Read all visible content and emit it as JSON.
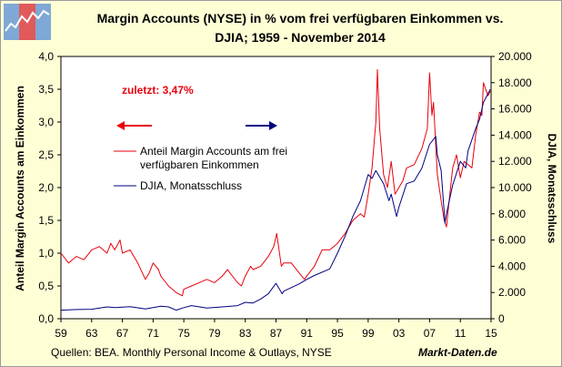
{
  "header": {
    "title_line1": "Margin Accounts (NYSE) in % vom frei verfügbaren Einkommen vs.",
    "title_line2": "DJIA; 1959 - November 2014"
  },
  "footer": {
    "source": "Quellen: BEA. Monthly Personal Income & Outlays, NYSE",
    "brand": "Markt-Daten.de"
  },
  "colors": {
    "margin": "#E8000B",
    "djia": "#000080",
    "plot_bg": "#FFFFFF",
    "frame_bg": "#FFFFD6"
  },
  "chart_data": {
    "type": "line",
    "xlabel": "",
    "x_ticks": [
      "59",
      "63",
      "67",
      "71",
      "75",
      "79",
      "83",
      "87",
      "91",
      "95",
      "99",
      "03",
      "07",
      "11",
      "15"
    ],
    "xlim": [
      1959,
      2015
    ],
    "left_axis": {
      "label": "Anteil Margin Accounts am Einkommen",
      "ylim": [
        0,
        4
      ],
      "ticks": [
        "0,0",
        "0,5",
        "1,0",
        "1,5",
        "2,0",
        "2,5",
        "3,0",
        "3,5",
        "4,0"
      ]
    },
    "right_axis": {
      "label": "DJIA, Monatsschluss",
      "ylim": [
        0,
        20000
      ],
      "ticks": [
        "0",
        "2.000",
        "4.000",
        "6.000",
        "8.000",
        "10.000",
        "12.000",
        "14.000",
        "16.000",
        "18.000",
        "20.000"
      ]
    },
    "annotation": "zuletzt: 3,47%",
    "legend": [
      "Anteil Margin Accounts am frei verfügbaren Einkommen",
      "DJIA, Monatsschluss"
    ],
    "series": [
      {
        "name": "Anteil Margin Accounts am frei verfügbaren Einkommen",
        "axis": "left",
        "x": [
          1959,
          1960,
          1961,
          1962,
          1963,
          1964,
          1965,
          1965.5,
          1966,
          1966.7,
          1967,
          1968,
          1968.5,
          1969,
          1970,
          1970.5,
          1971,
          1971.7,
          1972,
          1973,
          1974,
          1974.8,
          1975,
          1976,
          1977,
          1978,
          1979,
          1980,
          1980.7,
          1981,
          1982,
          1982.5,
          1983,
          1983.7,
          1984,
          1985,
          1986,
          1986.7,
          1987.1,
          1987.7,
          1988,
          1989,
          1990,
          1990.7,
          1991,
          1992,
          1993,
          1994,
          1995,
          1996,
          1997,
          1998,
          1998.5,
          1999,
          1999.5,
          2000,
          2000.2,
          2000.5,
          2001,
          2001.5,
          2002,
          2002.5,
          2003,
          2003.5,
          2004,
          2005,
          2006,
          2006.7,
          2007,
          2007.3,
          2007.5,
          2008,
          2008.5,
          2008.9,
          2009.2,
          2009.5,
          2010,
          2010.5,
          2011,
          2011.5,
          2012,
          2012.5,
          2013,
          2013.5,
          2013.8,
          2014,
          2014.3,
          2014.6,
          2014.9
        ],
        "values": [
          1.0,
          0.85,
          0.95,
          0.9,
          1.05,
          1.1,
          1.0,
          1.15,
          1.05,
          1.2,
          1.0,
          1.05,
          0.95,
          0.85,
          0.6,
          0.7,
          0.85,
          0.75,
          0.65,
          0.5,
          0.4,
          0.35,
          0.45,
          0.5,
          0.55,
          0.6,
          0.55,
          0.65,
          0.75,
          0.7,
          0.55,
          0.5,
          0.65,
          0.8,
          0.75,
          0.8,
          0.95,
          1.1,
          1.3,
          0.8,
          0.85,
          0.85,
          0.7,
          0.6,
          0.65,
          0.8,
          1.05,
          1.05,
          1.15,
          1.3,
          1.5,
          1.6,
          1.55,
          1.9,
          2.3,
          3.0,
          3.8,
          2.9,
          2.2,
          2.0,
          2.4,
          1.9,
          2.0,
          2.1,
          2.3,
          2.35,
          2.6,
          2.9,
          3.75,
          3.1,
          3.3,
          2.2,
          1.8,
          1.5,
          1.4,
          1.75,
          2.3,
          2.5,
          2.15,
          2.4,
          2.35,
          2.3,
          2.8,
          3.15,
          3.1,
          3.6,
          3.5,
          3.4,
          3.47
        ]
      },
      {
        "name": "DJIA, Monatsschluss",
        "axis": "right",
        "x": [
          1959,
          1961,
          1963,
          1965,
          1966,
          1967,
          1968,
          1970,
          1972,
          1973,
          1974,
          1975,
          1976,
          1978,
          1980,
          1982,
          1983,
          1984,
          1985,
          1986,
          1987,
          1987.8,
          1988,
          1990,
          1991,
          1992,
          1994,
          1995,
          1996,
          1997,
          1998,
          1999,
          1999.5,
          2000,
          2001,
          2001.7,
          2002,
          2002.7,
          2003,
          2004,
          2005,
          2006,
          2007,
          2007.8,
          2008,
          2008.5,
          2009,
          2009.2,
          2010,
          2011,
          2011.7,
          2012,
          2013,
          2013.5,
          2014,
          2014.9
        ],
        "values": [
          650,
          700,
          720,
          900,
          850,
          880,
          920,
          750,
          950,
          900,
          650,
          850,
          1000,
          820,
          900,
          1000,
          1250,
          1200,
          1500,
          1900,
          2700,
          1900,
          2100,
          2650,
          3000,
          3300,
          3800,
          5000,
          6300,
          7800,
          9000,
          11000,
          10700,
          11300,
          10300,
          9000,
          9500,
          7800,
          8500,
          10300,
          10500,
          11500,
          13300,
          13900,
          12500,
          11300,
          7300,
          8000,
          10200,
          12000,
          11500,
          12800,
          14500,
          15200,
          16500,
          17500
        ]
      }
    ]
  }
}
